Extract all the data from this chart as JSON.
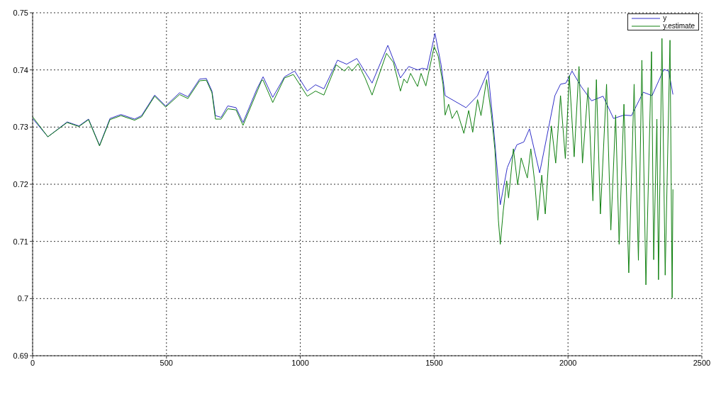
{
  "chart_data": {
    "type": "line",
    "xlim": [
      0,
      2500
    ],
    "xticks": [
      0,
      500,
      1000,
      1500,
      2000,
      2500
    ],
    "ylim": [
      0.69,
      0.75
    ],
    "yticks": [
      0.69,
      0.7,
      0.71,
      0.72,
      0.73,
      0.74,
      0.75
    ],
    "grid": true,
    "legend": "top right",
    "series": [
      {
        "name": "y",
        "color": "#3030c8",
        "x": [
          0,
          57,
          129,
          173,
          209,
          250,
          289,
          330,
          381,
          407,
          456,
          497,
          549,
          580,
          624,
          649,
          670,
          683,
          704,
          729,
          760,
          786,
          838,
          861,
          897,
          941,
          979,
          1026,
          1057,
          1088,
          1139,
          1173,
          1211,
          1268,
          1327,
          1374,
          1405,
          1438,
          1456,
          1474,
          1503,
          1526,
          1541,
          1619,
          1662,
          1701,
          1722,
          1747,
          1773,
          1809,
          1835,
          1856,
          1894,
          1928,
          1951,
          1972,
          1992,
          2015,
          2049,
          2088,
          2131,
          2170,
          2209,
          2237,
          2281,
          2314,
          2358,
          2376,
          2392
        ],
        "values": [
          0.7315,
          0.7283,
          0.7309,
          0.7302,
          0.7314,
          0.7268,
          0.7315,
          0.7322,
          0.7314,
          0.732,
          0.7356,
          0.7337,
          0.736,
          0.7353,
          0.7384,
          0.7385,
          0.7363,
          0.732,
          0.7317,
          0.7337,
          0.7334,
          0.7308,
          0.7367,
          0.7388,
          0.7352,
          0.7388,
          0.7398,
          0.7363,
          0.7374,
          0.7367,
          0.7417,
          0.741,
          0.742,
          0.7377,
          0.7443,
          0.7386,
          0.7406,
          0.74,
          0.7403,
          0.7401,
          0.7464,
          0.7409,
          0.7355,
          0.7334,
          0.7355,
          0.7398,
          0.7298,
          0.7164,
          0.7229,
          0.7269,
          0.7274,
          0.7297,
          0.722,
          0.73,
          0.7355,
          0.7375,
          0.7377,
          0.7398,
          0.7371,
          0.7346,
          0.7354,
          0.7315,
          0.7321,
          0.732,
          0.7361,
          0.7355,
          0.7401,
          0.7398,
          0.7357
        ]
      },
      {
        "name": "y.estimate",
        "color": "#108010",
        "x": [
          0,
          57,
          129,
          173,
          209,
          250,
          289,
          330,
          381,
          407,
          456,
          497,
          549,
          580,
          624,
          649,
          670,
          683,
          704,
          729,
          760,
          786,
          856,
          861,
          897,
          941,
          974,
          1026,
          1057,
          1088,
          1134,
          1165,
          1180,
          1193,
          1216,
          1242,
          1268,
          1322,
          1348,
          1374,
          1387,
          1399,
          1412,
          1438,
          1451,
          1469,
          1477,
          1500,
          1515,
          1533,
          1541,
          1554,
          1567,
          1585,
          1611,
          1629,
          1644,
          1662,
          1675,
          1696,
          1714,
          1727,
          1740,
          1747,
          1758,
          1771,
          1778,
          1796,
          1812,
          1825,
          1848,
          1861,
          1876,
          1887,
          1902,
          1915,
          1928,
          1938,
          1954,
          1972,
          1990,
          2005,
          2023,
          2041,
          2054,
          2075,
          2093,
          2106,
          2121,
          2144,
          2160,
          2178,
          2191,
          2209,
          2227,
          2247,
          2263,
          2276,
          2291,
          2312,
          2320,
          2332,
          2338,
          2351,
          2363,
          2381,
          2389,
          2392
        ],
        "values": [
          0.7318,
          0.7283,
          0.7308,
          0.7301,
          0.7313,
          0.7267,
          0.7313,
          0.732,
          0.7312,
          0.7318,
          0.7354,
          0.7335,
          0.7357,
          0.735,
          0.7381,
          0.7382,
          0.736,
          0.7314,
          0.7314,
          0.7332,
          0.733,
          0.7303,
          0.7382,
          0.7382,
          0.7343,
          0.7386,
          0.7392,
          0.7354,
          0.7363,
          0.7356,
          0.7409,
          0.7398,
          0.7406,
          0.7398,
          0.7411,
          0.7386,
          0.7356,
          0.7429,
          0.7413,
          0.7363,
          0.7384,
          0.7377,
          0.7394,
          0.7371,
          0.7394,
          0.7372,
          0.739,
          0.7441,
          0.7424,
          0.7375,
          0.7321,
          0.734,
          0.7315,
          0.7329,
          0.7289,
          0.7329,
          0.7291,
          0.7348,
          0.732,
          0.7383,
          0.7321,
          0.726,
          0.7137,
          0.7095,
          0.7153,
          0.7206,
          0.7176,
          0.7262,
          0.7199,
          0.7246,
          0.7211,
          0.7262,
          0.7202,
          0.7137,
          0.7216,
          0.7148,
          0.7245,
          0.7302,
          0.7237,
          0.7355,
          0.7245,
          0.739,
          0.7248,
          0.7406,
          0.7237,
          0.7369,
          0.7171,
          0.7383,
          0.7148,
          0.7375,
          0.712,
          0.7321,
          0.7095,
          0.734,
          0.7045,
          0.7375,
          0.7067,
          0.7417,
          0.7024,
          0.7432,
          0.7068,
          0.7314,
          0.7033,
          0.7455,
          0.7041,
          0.7452,
          0.7001,
          0.7191
        ]
      }
    ]
  }
}
